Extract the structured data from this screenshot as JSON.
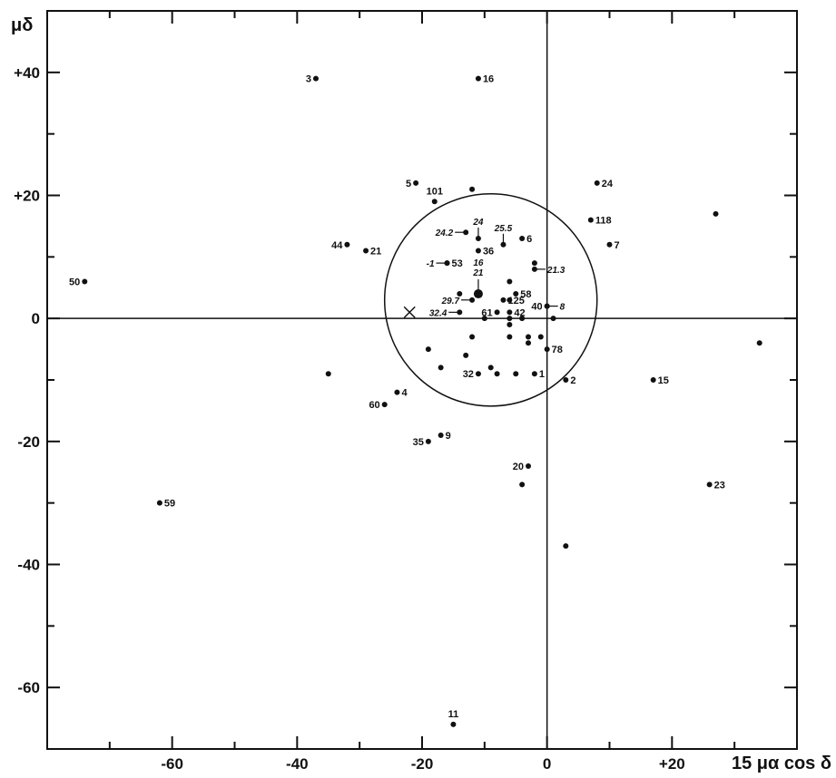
{
  "chart_data": {
    "type": "scatter",
    "title": "",
    "xlabel": "15 μα cos δ",
    "ylabel": "μδ",
    "xlim": [
      -80,
      40
    ],
    "ylim": [
      -70,
      50
    ],
    "grid": false,
    "x_tick_labels": [
      {
        "v": -60,
        "t": "-60"
      },
      {
        "v": -40,
        "t": "-40"
      },
      {
        "v": -20,
        "t": "-20"
      },
      {
        "v": 0,
        "t": "0"
      },
      {
        "v": 20,
        "t": "+20"
      }
    ],
    "y_tick_labels": [
      {
        "v": 40,
        "t": "+40"
      },
      {
        "v": 20,
        "t": "+20"
      },
      {
        "v": 0,
        "t": "0"
      },
      {
        "v": -20,
        "t": "-20"
      },
      {
        "v": -40,
        "t": "-40"
      },
      {
        "v": -60,
        "t": "-60"
      }
    ],
    "circle": {
      "cx": -9,
      "cy": 3,
      "r": 17
    },
    "cross_marker": {
      "x": -22,
      "y": 1
    },
    "labeled_points": [
      {
        "x": -37,
        "y": 39,
        "label": "3",
        "pos": "left"
      },
      {
        "x": -11,
        "y": 39,
        "label": "16",
        "pos": "right"
      },
      {
        "x": -21,
        "y": 22,
        "label": "5",
        "pos": "left"
      },
      {
        "x": -18,
        "y": 19,
        "label": "101",
        "pos": "above"
      },
      {
        "x": 8,
        "y": 22,
        "label": "24",
        "pos": "right"
      },
      {
        "x": 7,
        "y": 16,
        "label": "118",
        "pos": "right"
      },
      {
        "x": 10,
        "y": 12,
        "label": "7",
        "pos": "right"
      },
      {
        "x": -32,
        "y": 12,
        "label": "44",
        "pos": "left"
      },
      {
        "x": -29,
        "y": 11,
        "label": "21",
        "pos": "right"
      },
      {
        "x": -74,
        "y": 6,
        "label": "50",
        "pos": "left"
      },
      {
        "x": -11,
        "y": 11,
        "label": "36",
        "pos": "right"
      },
      {
        "x": -4,
        "y": 13,
        "label": "6",
        "pos": "right"
      },
      {
        "x": -16,
        "y": 9,
        "label": "53",
        "pos": "right"
      },
      {
        "x": -5,
        "y": 4,
        "label": "58",
        "pos": "right"
      },
      {
        "x": -7,
        "y": 3,
        "label": "125",
        "pos": "right"
      },
      {
        "x": -8,
        "y": 1,
        "label": "61",
        "pos": "left"
      },
      {
        "x": -6,
        "y": 1,
        "label": "42",
        "pos": "right"
      },
      {
        "x": 0,
        "y": 2,
        "label": "40",
        "pos": "left"
      },
      {
        "x": 0,
        "y": -5,
        "label": "78",
        "pos": "right"
      },
      {
        "x": -11,
        "y": -9,
        "label": "32",
        "pos": "left"
      },
      {
        "x": -2,
        "y": -9,
        "label": "1",
        "pos": "right"
      },
      {
        "x": 3,
        "y": -10,
        "label": "2",
        "pos": "right"
      },
      {
        "x": 17,
        "y": -10,
        "label": "15",
        "pos": "right"
      },
      {
        "x": -24,
        "y": -12,
        "label": "4",
        "pos": "right"
      },
      {
        "x": -26,
        "y": -14,
        "label": "60",
        "pos": "left"
      },
      {
        "x": -17,
        "y": -19,
        "label": "9",
        "pos": "right"
      },
      {
        "x": -19,
        "y": -20,
        "label": "35",
        "pos": "left"
      },
      {
        "x": -3,
        "y": -24,
        "label": "20",
        "pos": "left"
      },
      {
        "x": -62,
        "y": -30,
        "label": "59",
        "pos": "right"
      },
      {
        "x": 26,
        "y": -27,
        "label": "23",
        "pos": "right"
      },
      {
        "x": -15,
        "y": -66,
        "label": "11",
        "pos": "above"
      }
    ],
    "big_points": [
      {
        "x": -11,
        "y": 4,
        "label": "21",
        "label2": "16"
      }
    ],
    "arrow_points": [
      {
        "x": -13,
        "y": 14,
        "label": "24.2",
        "dir": "left"
      },
      {
        "x": -11,
        "y": 13,
        "label": "24",
        "dir": "up"
      },
      {
        "x": -7,
        "y": 12,
        "label": "25.5",
        "dir": "up"
      },
      {
        "x": -2,
        "y": 8,
        "label": "21.3",
        "dir": "right"
      },
      {
        "x": -16,
        "y": 9,
        "label": "-1",
        "dir": "left"
      },
      {
        "x": -12,
        "y": 3,
        "label": "29.7",
        "dir": "left"
      },
      {
        "x": -14,
        "y": 1,
        "label": "32.4",
        "dir": "left"
      },
      {
        "x": 0,
        "y": 2,
        "label": "8",
        "dir": "right"
      }
    ],
    "unlabeled_points": [
      {
        "x": -12,
        "y": 21
      },
      {
        "x": -2,
        "y": 9
      },
      {
        "x": 27,
        "y": 17
      },
      {
        "x": -14,
        "y": 4
      },
      {
        "x": -6,
        "y": 6
      },
      {
        "x": -6,
        "y": 3
      },
      {
        "x": -6,
        "y": 0
      },
      {
        "x": -4,
        "y": 0
      },
      {
        "x": -10,
        "y": 0
      },
      {
        "x": 1,
        "y": 0
      },
      {
        "x": -6,
        "y": -1
      },
      {
        "x": -12,
        "y": -3
      },
      {
        "x": -6,
        "y": -3
      },
      {
        "x": -3,
        "y": -3
      },
      {
        "x": -1,
        "y": -3
      },
      {
        "x": -3,
        "y": -4
      },
      {
        "x": -19,
        "y": -5
      },
      {
        "x": -13,
        "y": -6
      },
      {
        "x": -17,
        "y": -8
      },
      {
        "x": -9,
        "y": -8
      },
      {
        "x": -8,
        "y": -9
      },
      {
        "x": -5,
        "y": -9
      },
      {
        "x": -35,
        "y": -9
      },
      {
        "x": 34,
        "y": -4
      },
      {
        "x": -4,
        "y": -27
      },
      {
        "x": 3,
        "y": -37
      }
    ]
  }
}
